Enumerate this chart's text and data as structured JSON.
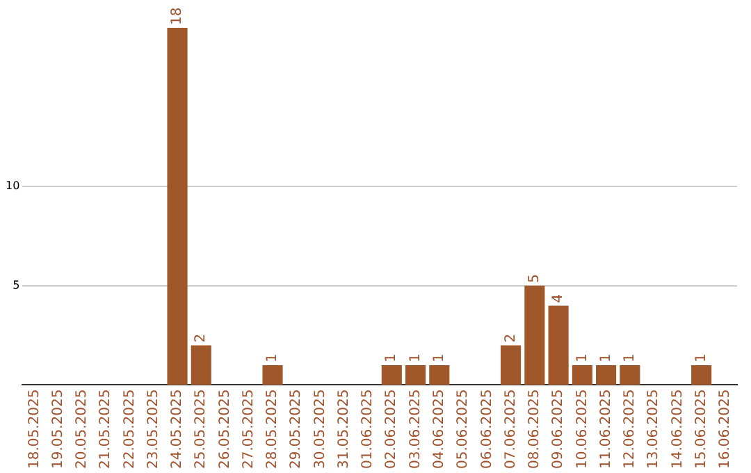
{
  "chart_data": {
    "type": "bar",
    "categories": [
      "18.05.2025",
      "19.05.2025",
      "20.05.2025",
      "21.05.2025",
      "22.05.2025",
      "23.05.2025",
      "24.05.2025",
      "25.05.2025",
      "26.05.2025",
      "27.05.2025",
      "28.05.2025",
      "29.05.2025",
      "30.05.2025",
      "31.05.2025",
      "01.06.2025",
      "02.06.2025",
      "03.06.2025",
      "04.06.2025",
      "05.06.2025",
      "06.06.2025",
      "07.06.2025",
      "08.06.2025",
      "09.06.2025",
      "10.06.2025",
      "11.06.2025",
      "12.06.2025",
      "13.06.2025",
      "14.06.2025",
      "15.06.2025",
      "16.06.2025"
    ],
    "values": [
      0,
      0,
      0,
      0,
      0,
      0,
      18,
      2,
      0,
      0,
      1,
      0,
      0,
      0,
      0,
      1,
      1,
      1,
      0,
      0,
      2,
      5,
      4,
      1,
      1,
      1,
      0,
      0,
      1,
      0
    ],
    "value_labels": [
      null,
      null,
      null,
      null,
      null,
      null,
      "18",
      "2",
      null,
      null,
      "1",
      null,
      null,
      null,
      null,
      "1",
      "1",
      "1",
      null,
      null,
      "2",
      "5",
      "4",
      "1",
      "1",
      "1",
      null,
      null,
      "1",
      null
    ],
    "color": "#a0582a",
    "ylim": [
      0,
      18
    ],
    "yticks": [
      5,
      10
    ],
    "grid": "y",
    "legend": false
  }
}
